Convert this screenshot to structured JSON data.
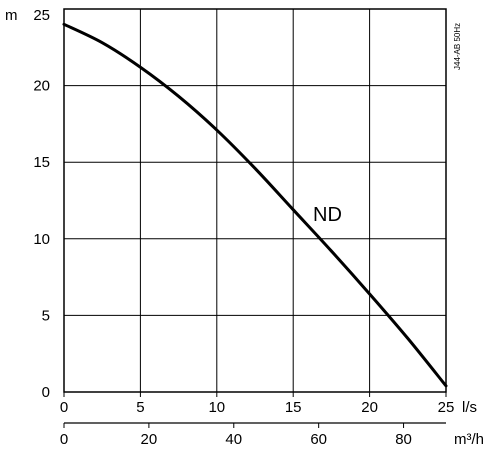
{
  "chart_data": {
    "type": "line",
    "title": "",
    "x_primary": {
      "unit": "l/s",
      "range": [
        0,
        25
      ],
      "ticks": [
        0,
        5,
        10,
        15,
        20,
        25
      ]
    },
    "x_secondary": {
      "unit": "m³/h",
      "range": [
        0,
        90
      ],
      "ticks": [
        0,
        20,
        40,
        60,
        80
      ]
    },
    "y": {
      "unit": "m",
      "range": [
        0,
        25
      ],
      "ticks": [
        0,
        5,
        10,
        15,
        20,
        25
      ]
    },
    "grid": true,
    "side_note": "J44-AB 50Hz",
    "series": [
      {
        "name": "ND",
        "x": [
          0,
          2.5,
          5,
          7.5,
          10,
          12.5,
          15,
          17.5,
          20,
          22.5,
          25
        ],
        "values": [
          24.0,
          22.8,
          21.2,
          19.3,
          17.1,
          14.6,
          11.9,
          9.2,
          6.4,
          3.5,
          0.4
        ]
      }
    ],
    "colors": {
      "line": "#000000",
      "grid": "#000000",
      "background": "#ffffff"
    }
  }
}
